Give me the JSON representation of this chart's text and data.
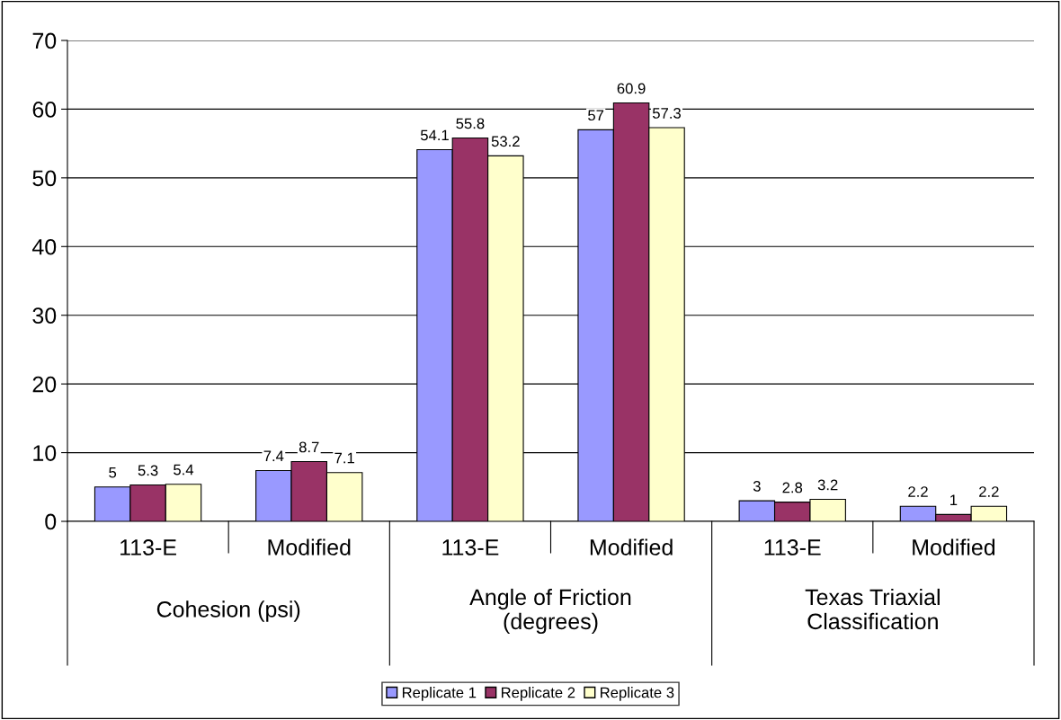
{
  "chart_data": {
    "type": "bar",
    "categories": [
      "113-E",
      "Modified",
      "113-E",
      "Modified",
      "113-E",
      "Modified"
    ],
    "annotations": [
      "Cohesion (psi)",
      "Angle of Friction (degrees)",
      "Texas Triaxial Classification"
    ],
    "series": [
      {
        "name": "Replicate 1",
        "color": "#9999ff",
        "values": [
          5,
          7.4,
          54.1,
          57,
          3,
          2.2
        ]
      },
      {
        "name": "Replicate 2",
        "color": "#993366",
        "values": [
          5.3,
          8.7,
          55.8,
          60.9,
          2.8,
          1
        ]
      },
      {
        "name": "Replicate 3",
        "color": "#ffffcc",
        "values": [
          5.4,
          7.1,
          53.2,
          57.3,
          3.2,
          2.2
        ]
      }
    ],
    "ylim": [
      0,
      70
    ],
    "yticks": [
      0,
      10,
      20,
      30,
      40,
      50,
      60,
      70
    ],
    "grid": "y",
    "legend": "bottom",
    "data_labels": true
  }
}
